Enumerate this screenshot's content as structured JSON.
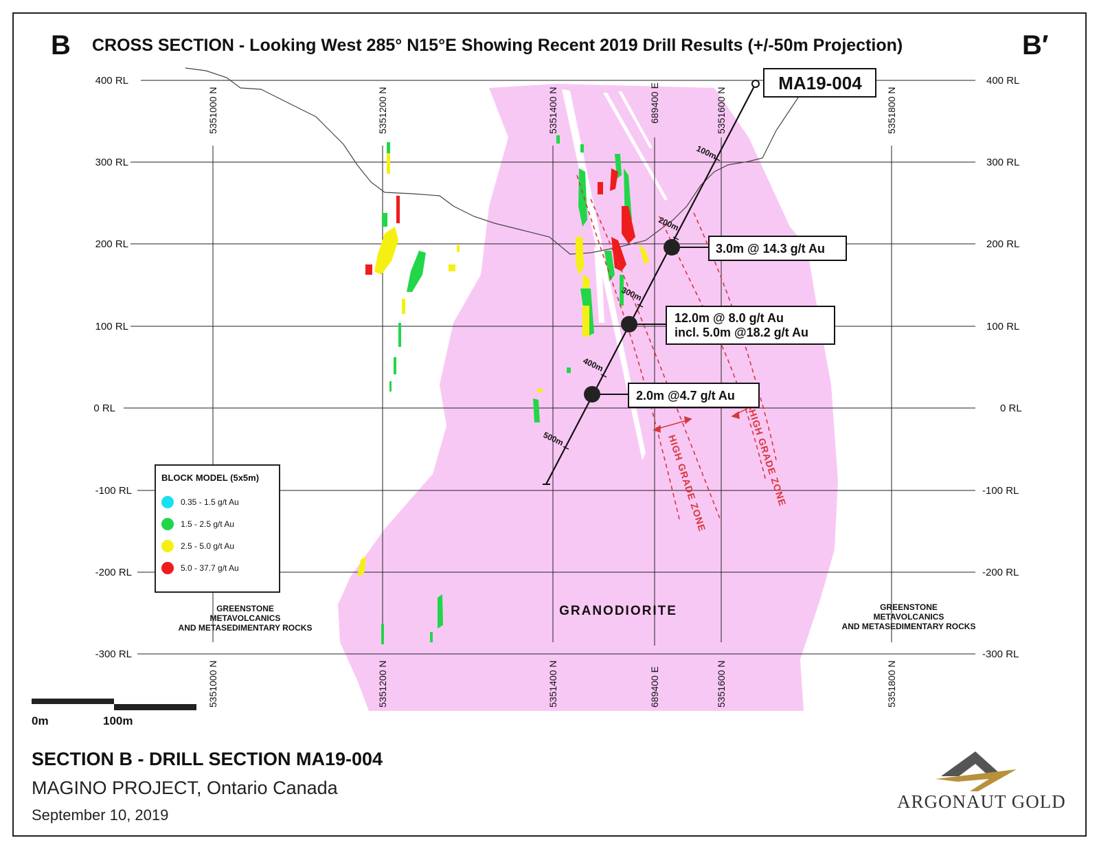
{
  "header": {
    "section_left": "B",
    "section_right": "B′",
    "title": "CROSS SECTION - Looking West 285° N15°E Showing Recent 2019 Drill Results (+/-50m Projection)"
  },
  "elevation_labels": [
    "400 RL",
    "300 RL",
    "200 RL",
    "100 RL",
    "0 RL",
    "-100 RL",
    "-200 RL",
    "-300 RL"
  ],
  "northing_labels": [
    "5351000 N",
    "5351200 N",
    "5351400 N",
    "689400 E",
    "5351600 N",
    "5351800 N"
  ],
  "drillhole": {
    "name": "MA19-004",
    "depth_marks": [
      "100m",
      "200m",
      "300m",
      "400m",
      "500m"
    ]
  },
  "intercepts": [
    {
      "line1": "3.0m @ 14.3 g/t Au",
      "line2": ""
    },
    {
      "line1": "12.0m @ 8.0 g/t Au",
      "line2": "incl. 5.0m @18.2 g/t Au"
    },
    {
      "line1": "2.0m @4.7 g/t Au",
      "line2": ""
    }
  ],
  "zones": {
    "high_grade_1": "HIGH GRADE ZONE",
    "high_grade_2": "HIGH GRADE ZONE"
  },
  "rock_units": {
    "granodiorite": "GRANODIORITE",
    "greenstone_left": [
      "GREENSTONE",
      "METAVOLCANICS",
      "AND METASEDIMENTARY ROCKS"
    ],
    "greenstone_right": [
      "GREENSTONE",
      "METAVOLCANICS",
      "AND METASEDIMENTARY ROCKS"
    ]
  },
  "legend": {
    "title": "BLOCK MODEL (5x5m)",
    "items": [
      {
        "label": "0.35 - 1.5 g/t Au",
        "color": "#19e0f0"
      },
      {
        "label": "1.5 - 2.5 g/t Au",
        "color": "#22d64a"
      },
      {
        "label": "2.5 - 5.0 g/t Au",
        "color": "#f5f011"
      },
      {
        "label": "5.0 - 37.7 g/t Au",
        "color": "#ee1c1c"
      }
    ]
  },
  "scale": {
    "start": "0m",
    "end": "100m"
  },
  "footer": {
    "title": "SECTION B - DRILL SECTION MA19-004",
    "project": "MAGINO PROJECT, Ontario Canada",
    "date": "September 10, 2019"
  },
  "logo": {
    "text": "ARGONAUT GOLD",
    "colors": {
      "dark": "#555555",
      "gold": "#b8913a"
    }
  },
  "colors": {
    "granodiorite": "#f8c8f5",
    "high_grade": "#d9363a"
  }
}
